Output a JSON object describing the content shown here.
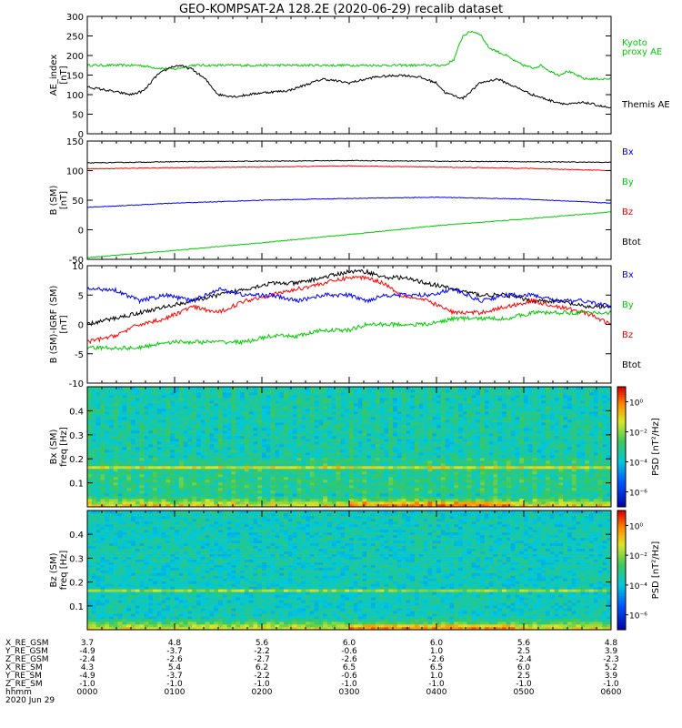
{
  "title": "GEO-KOMPSAT-2A 128.2E (2020-06-29) recalib dataset",
  "colors": {
    "black": "#000000",
    "blue": "#0000ff",
    "green": "#00cc00",
    "red": "#ff0000"
  },
  "panels": [
    {
      "id": "ae",
      "ylabel": [
        "AE_index",
        "[nT]"
      ],
      "yticks": [
        "300",
        "250",
        "200",
        "150",
        "100",
        "50",
        "0"
      ],
      "legend": [
        {
          "text": "Kyoto",
          "color": "#00cc00"
        },
        {
          "text": "proxy AE",
          "color": "#00cc00"
        },
        {
          "text": "Themis AE",
          "color": "#000000"
        }
      ]
    },
    {
      "id": "bsm",
      "ylabel": [
        "B (SM)",
        "[nT]"
      ],
      "yticks": [
        "150",
        "100",
        "50",
        "0",
        "-50"
      ],
      "legend": [
        {
          "text": "Bx",
          "color": "#0000ff"
        },
        {
          "text": "By",
          "color": "#00cc00"
        },
        {
          "text": "Bz",
          "color": "#ff0000"
        },
        {
          "text": "Btot",
          "color": "#000000"
        }
      ]
    },
    {
      "id": "digrf",
      "ylabel": [
        "B (SM)-IGRF (SM)",
        "[nT]"
      ],
      "yticks": [
        "10",
        "5",
        "0",
        "-5",
        "-10"
      ],
      "legend": [
        {
          "text": "Bx",
          "color": "#0000ff"
        },
        {
          "text": "By",
          "color": "#00cc00"
        },
        {
          "text": "Bz",
          "color": "#ff0000"
        },
        {
          "text": "Btot",
          "color": "#000000"
        }
      ]
    },
    {
      "id": "spec_bx",
      "ylabel": [
        "Bx (SM)",
        "freq [Hz]"
      ],
      "yticks": [
        "0.4",
        "0.3",
        "0.2",
        "0.1"
      ],
      "cbar_ticks": [
        "10⁰",
        "10⁻²",
        "10⁻⁴",
        "10⁻⁶"
      ],
      "cbar_label": "PSD [nT²/Hz]"
    },
    {
      "id": "spec_bz",
      "ylabel": [
        "Bz (SM)",
        "freq [Hz]"
      ],
      "yticks": [
        "0.4",
        "0.3",
        "0.2",
        "0.1"
      ],
      "cbar_ticks": [
        "10⁰",
        "10⁻²",
        "10⁻⁴",
        "10⁻⁶"
      ],
      "cbar_label": "PSD [nT²/Hz]"
    }
  ],
  "ephemeris": {
    "labels": [
      "X_RE_GSM",
      "Y_RE_GSM",
      "Z_RE_GSM",
      "X_RE_SM",
      "Y_RE_SM",
      "Z_RE_SM",
      "hhmm",
      "2020 Jun 29"
    ],
    "columns": [
      [
        "3.7",
        "-4.9",
        "-2.4",
        "4.3",
        "-4.9",
        "-1.0",
        "0000"
      ],
      [
        "4.8",
        "-3.7",
        "-2.6",
        "5.4",
        "-3.7",
        "-1.0",
        "0100"
      ],
      [
        "5.6",
        "-2.2",
        "-2.7",
        "6.2",
        "-2.2",
        "-1.0",
        "0200"
      ],
      [
        "6.0",
        "-0.6",
        "-2.6",
        "6.5",
        "-0.6",
        "-1.0",
        "0300"
      ],
      [
        "6.0",
        "1.0",
        "-2.6",
        "6.5",
        "1.0",
        "-1.0",
        "0400"
      ],
      [
        "5.6",
        "2.5",
        "-2.4",
        "6.0",
        "2.5",
        "-1.0",
        "0500"
      ],
      [
        "4.8",
        "3.9",
        "-2.3",
        "5.2",
        "3.9",
        "-1.0",
        "0600"
      ]
    ]
  },
  "chart_data": [
    {
      "type": "line",
      "panel": "AE index",
      "x_unit": "hours UT",
      "xlim": [
        0,
        6
      ],
      "ylim": [
        0,
        300
      ],
      "series": [
        {
          "name": "Kyoto proxy AE",
          "color": "#00cc00",
          "x": [
            0,
            0.6,
            0.8,
            1.0,
            1.2,
            1.4,
            1.7,
            2.0,
            2.5,
            3.0,
            3.5,
            4.0,
            4.1,
            4.2,
            4.3,
            4.4,
            4.5,
            4.6,
            4.7,
            4.8,
            4.9,
            5.0,
            5.1,
            5.2,
            5.3,
            5.4,
            5.5,
            5.6,
            5.7,
            5.8,
            6.0
          ],
          "y": [
            175,
            175,
            168,
            165,
            175,
            175,
            175,
            175,
            175,
            175,
            175,
            175,
            175,
            190,
            250,
            262,
            255,
            220,
            210,
            200,
            185,
            175,
            168,
            175,
            160,
            150,
            160,
            150,
            140,
            140,
            140
          ]
        },
        {
          "name": "Themis AE",
          "color": "#000000",
          "x": [
            0,
            0.25,
            0.5,
            0.65,
            0.8,
            0.95,
            1.05,
            1.2,
            1.35,
            1.5,
            1.7,
            2.0,
            2.3,
            2.5,
            2.7,
            3.0,
            3.3,
            3.6,
            3.8,
            4.0,
            4.1,
            4.3,
            4.5,
            4.7,
            4.9,
            5.1,
            5.3,
            5.5,
            5.7,
            5.9,
            6.0
          ],
          "y": [
            120,
            110,
            100,
            110,
            150,
            170,
            175,
            165,
            140,
            100,
            95,
            105,
            110,
            125,
            140,
            130,
            145,
            150,
            145,
            130,
            105,
            90,
            130,
            140,
            120,
            100,
            85,
            75,
            80,
            70,
            65
          ]
        }
      ]
    },
    {
      "type": "line",
      "panel": "B (SM)",
      "x_unit": "hours UT",
      "xlim": [
        0,
        6
      ],
      "ylim": [
        -50,
        150
      ],
      "series": [
        {
          "name": "Btot",
          "color": "#000000",
          "x": [
            0,
            1,
            2,
            3,
            4,
            5,
            6
          ],
          "y": [
            113,
            115,
            116,
            117,
            116,
            115,
            114
          ]
        },
        {
          "name": "Bz",
          "color": "#ff0000",
          "x": [
            0,
            1,
            2,
            3,
            4,
            5,
            6
          ],
          "y": [
            103,
            105,
            106,
            108,
            106,
            104,
            100
          ]
        },
        {
          "name": "Bx",
          "color": "#0000ff",
          "x": [
            0,
            1,
            2,
            3,
            4,
            5,
            6
          ],
          "y": [
            38,
            45,
            50,
            53,
            55,
            52,
            45
          ]
        },
        {
          "name": "By",
          "color": "#00cc00",
          "x": [
            0,
            1,
            2,
            3,
            4,
            5,
            6
          ],
          "y": [
            -47,
            -35,
            -22,
            -8,
            7,
            18,
            30
          ]
        }
      ]
    },
    {
      "type": "line",
      "panel": "B (SM)-IGRF (SM)",
      "x_unit": "hours UT",
      "xlim": [
        0,
        6
      ],
      "ylim": [
        -10,
        10
      ],
      "series": [
        {
          "name": "Btot",
          "color": "#000000",
          "x": [
            0,
            0.3,
            0.6,
            0.9,
            1.2,
            1.5,
            1.8,
            2.1,
            2.4,
            2.7,
            3.0,
            3.2,
            3.4,
            3.6,
            3.9,
            4.2,
            4.5,
            4.8,
            5.1,
            5.4,
            5.7,
            6.0
          ],
          "y": [
            0,
            1,
            2,
            3,
            4,
            5,
            6,
            7,
            7,
            8,
            9,
            9,
            8,
            8,
            7,
            6,
            5,
            5,
            4,
            4,
            3,
            3
          ]
        },
        {
          "name": "Bz",
          "color": "#ff0000",
          "x": [
            0,
            0.3,
            0.6,
            0.9,
            1.2,
            1.5,
            1.8,
            2.1,
            2.4,
            2.7,
            3.0,
            3.2,
            3.4,
            3.6,
            3.9,
            4.2,
            4.5,
            4.8,
            5.1,
            5.4,
            5.7,
            6.0
          ],
          "y": [
            -3,
            -2,
            0,
            1,
            3,
            2,
            4,
            5,
            6,
            7,
            8,
            8,
            7,
            5,
            4,
            2,
            2,
            3,
            4,
            3,
            2,
            0
          ]
        },
        {
          "name": "Bx",
          "color": "#0000ff",
          "x": [
            0,
            0.3,
            0.6,
            0.9,
            1.2,
            1.5,
            1.8,
            2.1,
            2.4,
            2.7,
            3.0,
            3.2,
            3.4,
            3.6,
            3.9,
            4.2,
            4.5,
            4.8,
            5.1,
            5.4,
            5.7,
            6.0
          ],
          "y": [
            6,
            6,
            4,
            5,
            4,
            6,
            5,
            5,
            4,
            5,
            5,
            4,
            5,
            5,
            5,
            6,
            4,
            5,
            5,
            4,
            4,
            3
          ]
        },
        {
          "name": "By",
          "color": "#00cc00",
          "x": [
            0,
            0.3,
            0.6,
            0.9,
            1.2,
            1.5,
            1.8,
            2.1,
            2.4,
            2.7,
            3.0,
            3.2,
            3.4,
            3.6,
            3.9,
            4.2,
            4.5,
            4.8,
            5.1,
            5.4,
            5.7,
            6.0
          ],
          "y": [
            -4,
            -4,
            -4,
            -3,
            -3,
            -3,
            -3,
            -2,
            -2,
            -1,
            -1,
            0,
            0,
            0,
            0,
            1,
            1,
            1,
            2,
            2,
            2,
            2
          ]
        }
      ]
    },
    {
      "type": "heatmap",
      "panel": "Bx (SM) spectrogram",
      "x_unit": "hours UT",
      "xlim": [
        0,
        6
      ],
      "ylim": [
        0,
        0.5
      ],
      "ylabel": "freq [Hz]",
      "color_scale": "log PSD [nT^2/Hz], 10^-6 to 10^1"
    },
    {
      "type": "heatmap",
      "panel": "Bz (SM) spectrogram",
      "x_unit": "hours UT",
      "xlim": [
        0,
        6
      ],
      "ylim": [
        0,
        0.5
      ],
      "ylabel": "freq [Hz]",
      "color_scale": "log PSD [nT^2/Hz], 10^-6 to 10^1"
    }
  ]
}
